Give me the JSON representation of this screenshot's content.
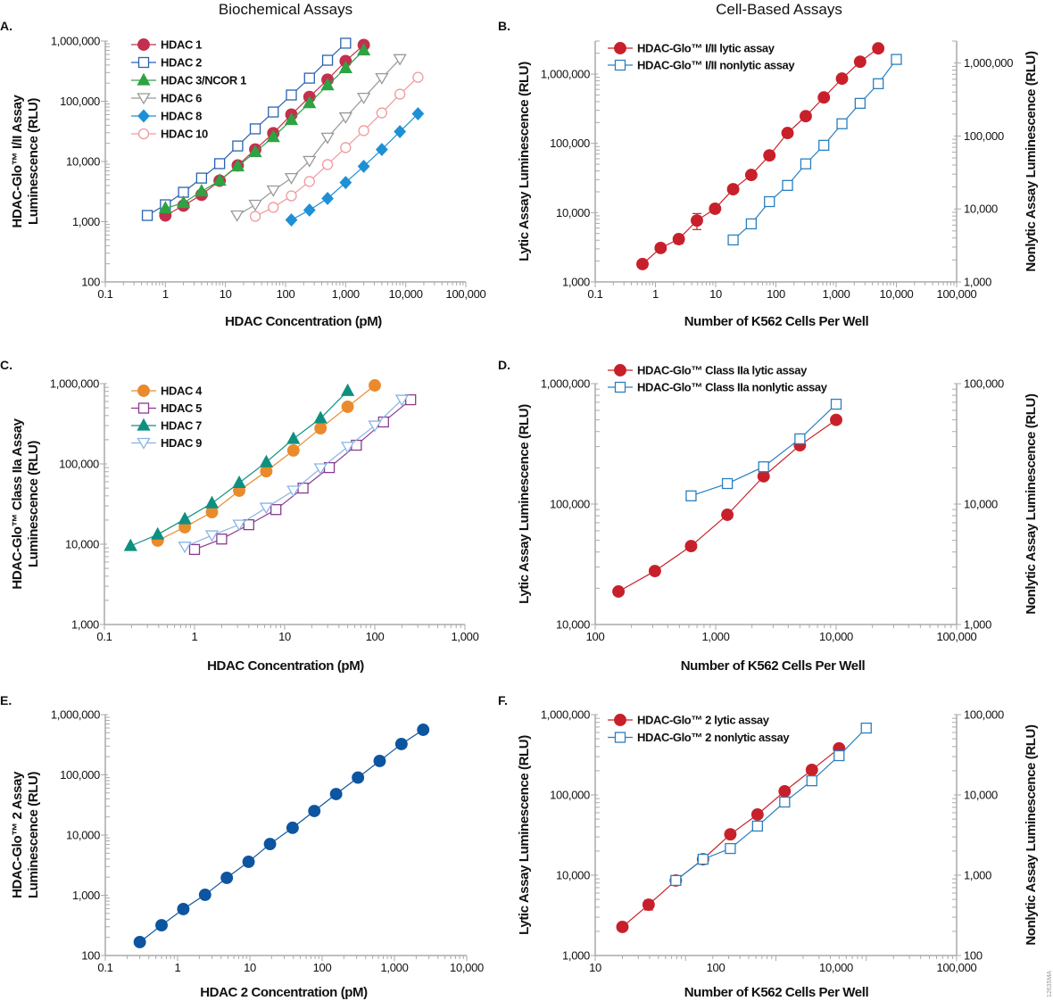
{
  "headings": {
    "biochemical": "Biochemical Assays",
    "cell_based": "Cell-Based Assays"
  },
  "figure_code": "12635MA",
  "chart_data": [
    {
      "panel": "A.",
      "type": "line",
      "scale": "log-log",
      "xlabel": "HDAC Concentration (pM)",
      "ylabel": [
        "HDAC-Glo™ I/II Assay",
        "Luminescence (RLU)"
      ],
      "xlim": [
        0.1,
        100000
      ],
      "ylim": [
        100,
        1000000
      ],
      "x_tick_labels": [
        "0.1",
        "1",
        "10",
        "100",
        "1,000",
        "10,000",
        "100,000"
      ],
      "y_ticks": [
        100,
        1000,
        10000,
        100000,
        1000000
      ],
      "y_tick_labels": [
        "100",
        "1,000",
        "10,000",
        "100,000",
        "1,000,000"
      ],
      "legend": "top-left",
      "grid": false,
      "series": [
        {
          "name": "HDAC 1",
          "color": "#c3304d",
          "marker": "circle-filled",
          "axis": "left",
          "x": [
            1,
            2,
            4,
            8,
            16,
            31.3,
            62.5,
            125,
            250,
            500,
            1000,
            2000
          ],
          "y": [
            1270,
            1850,
            2800,
            4800,
            8600,
            15800,
            29500,
            60000,
            118000,
            228000,
            465000,
            860000
          ]
        },
        {
          "name": "HDAC 2",
          "color": "#2a62b0",
          "marker": "square-open",
          "axis": "left",
          "x": [
            0.5,
            1,
            2,
            4,
            8,
            16,
            31.3,
            62.5,
            125,
            250,
            500,
            1000
          ],
          "y": [
            1270,
            1910,
            3080,
            5300,
            9200,
            18100,
            34800,
            66300,
            127000,
            242000,
            480000,
            920000
          ]
        },
        {
          "name": "HDAC 3/NCOR 1",
          "color": "#2ea343",
          "marker": "triangle-up-filled",
          "axis": "left",
          "x": [
            1,
            2,
            4,
            8,
            16,
            31.3,
            62.5,
            125,
            250,
            500,
            1000,
            2000
          ],
          "y": [
            1670,
            2050,
            3190,
            4800,
            8300,
            14300,
            25500,
            48800,
            93000,
            184000,
            355000,
            700000
          ]
        },
        {
          "name": "HDAC 6",
          "color": "#999999",
          "marker": "triangle-down-open",
          "axis": "left",
          "x": [
            15.6,
            31.3,
            62.5,
            125,
            250,
            500,
            1000,
            2000,
            4000,
            8000
          ],
          "y": [
            1270,
            1910,
            3300,
            5300,
            10200,
            24800,
            54000,
            114000,
            242000,
            500000
          ]
        },
        {
          "name": "HDAC 8",
          "color": "#1e90d6",
          "marker": "diamond-filled",
          "axis": "left",
          "x": [
            125,
            250,
            500,
            1000,
            2000,
            4000,
            8000,
            16000
          ],
          "y": [
            1070,
            1560,
            2430,
            4470,
            8300,
            15800,
            31300,
            62000
          ]
        },
        {
          "name": "HDAC 10",
          "color": "#f09a9c",
          "marker": "circle-open",
          "axis": "left",
          "x": [
            31.3,
            62.5,
            125,
            250,
            500,
            1000,
            2000,
            4000,
            8000,
            16000
          ],
          "y": [
            1230,
            1730,
            2690,
            4650,
            8900,
            17000,
            32500,
            64000,
            131000,
            250000
          ]
        }
      ]
    },
    {
      "panel": "B.",
      "type": "line",
      "scale": "log-log",
      "xlabel": "Number of K562 Cells Per Well",
      "ylabel": [
        "Lytic Assay Luminescence (RLU)"
      ],
      "ylabel_right": "Nonlytic Assay Luminescence (RLU)",
      "xlim": [
        0.1,
        100000
      ],
      "ylim": [
        1000,
        3000000
      ],
      "ylim_right": [
        1000,
        2000000
      ],
      "x_tick_labels": [
        "0.1",
        "1",
        "10",
        "100",
        "1,000",
        "10,000",
        "100,000"
      ],
      "y_ticks": [
        1000,
        10000,
        100000,
        1000000
      ],
      "y_tick_labels": [
        "1,000",
        "10,000",
        "100,000",
        "1,000,000"
      ],
      "y_ticks_right": [
        1000,
        10000,
        100000,
        1000000
      ],
      "y_tick_labels_right": [
        "1,000",
        "10,000",
        "100,000",
        "1,000,000"
      ],
      "legend": "top-left",
      "grid": false,
      "series": [
        {
          "name": "HDAC-Glo™ I/II lytic assay",
          "color": "#c8202a",
          "marker": "circle-filled",
          "axis": "left",
          "x": [
            0.61,
            1.22,
            2.44,
            4.88,
            9.77,
            19.5,
            39,
            78,
            156,
            313,
            625,
            1250,
            2500,
            5000
          ],
          "y": [
            1810,
            3090,
            4150,
            7700,
            11400,
            21800,
            35000,
            67000,
            141000,
            247000,
            460000,
            860000,
            1510000,
            2350000
          ],
          "yerr": [
            0,
            0,
            600,
            2000,
            1500,
            0,
            0,
            0,
            0,
            0,
            0,
            0,
            0,
            0
          ]
        },
        {
          "name": "HDAC-Glo™ I/II nonlytic assay",
          "color": "#2a7fc0",
          "marker": "square-open",
          "axis": "right",
          "x": [
            19.5,
            39,
            78,
            156,
            313,
            625,
            1250,
            2500,
            5000,
            10000
          ],
          "y": [
            3760,
            6250,
            12600,
            21000,
            41500,
            74500,
            147000,
            280000,
            520000,
            1120000
          ]
        }
      ]
    },
    {
      "panel": "C.",
      "type": "line",
      "scale": "log-log",
      "xlabel": "HDAC Concentration (pM)",
      "ylabel": [
        "HDAC-Glo™ Class IIa Assay",
        "Luminescence (RLU)"
      ],
      "xlim": [
        0.1,
        1000
      ],
      "ylim": [
        1000,
        1000000
      ],
      "x_tick_labels": [
        "0.1",
        "1",
        "10",
        "100",
        "1,000"
      ],
      "y_ticks": [
        1000,
        10000,
        100000,
        1000000
      ],
      "y_tick_labels": [
        "1,000",
        "10,000",
        "100,000",
        "1,000,000"
      ],
      "legend": "top-left",
      "grid": false,
      "series": [
        {
          "name": "HDAC 4",
          "color": "#ea8a2c",
          "marker": "circle-filled",
          "axis": "left",
          "x": [
            0.39,
            0.78,
            1.56,
            3.13,
            6.25,
            12.5,
            25,
            50,
            100
          ],
          "y": [
            11100,
            16300,
            25100,
            46400,
            81000,
            147000,
            278000,
            515000,
            950000
          ]
        },
        {
          "name": "HDAC 5",
          "color": "#8a3a8e",
          "marker": "square-open",
          "axis": "left",
          "x": [
            1,
            2,
            4,
            8,
            16,
            31.3,
            62.5,
            125,
            250
          ],
          "y": [
            8600,
            11600,
            17500,
            27000,
            50000,
            90000,
            171000,
            333000,
            630000
          ]
        },
        {
          "name": "HDAC 7",
          "color": "#0e9080",
          "marker": "triangle-up-filled",
          "axis": "left",
          "x": [
            0.195,
            0.39,
            0.78,
            1.56,
            3.13,
            6.25,
            12.5,
            25,
            50
          ],
          "y": [
            9500,
            13200,
            20500,
            32400,
            58000,
            105000,
            205000,
            370000,
            810000
          ]
        },
        {
          "name": "HDAC 9",
          "color": "#8ab4e6",
          "marker": "triangle-down-open",
          "axis": "left",
          "x": [
            0.78,
            1.56,
            3.13,
            6.25,
            12.5,
            25,
            50,
            100,
            200
          ],
          "y": [
            9300,
            12900,
            17500,
            28500,
            46400,
            88000,
            163000,
            300000,
            630000
          ]
        }
      ]
    },
    {
      "panel": "D.",
      "type": "line",
      "scale": "log-log",
      "xlabel": "Number of K562 Cells Per Well",
      "ylabel": [
        "Lytic Assay Luminescence (RLU)"
      ],
      "ylabel_right": "Nonlytic Assay Luminescence (RLU)",
      "xlim": [
        100,
        100000
      ],
      "ylim": [
        10000,
        1000000
      ],
      "ylim_right": [
        1000,
        100000
      ],
      "x_tick_labels": [
        "100",
        "1,000",
        "10,000",
        "100,000"
      ],
      "y_ticks": [
        10000,
        100000,
        1000000
      ],
      "y_tick_labels": [
        "10,000",
        "100,000",
        "1,000,000"
      ],
      "y_ticks_right": [
        1000,
        10000,
        100000
      ],
      "y_tick_labels_right": [
        "1,000",
        "10,000",
        "100,000"
      ],
      "legend": "top-left",
      "grid": false,
      "series": [
        {
          "name": "HDAC-Glo™ Class IIa lytic assay",
          "color": "#c8202a",
          "marker": "circle-filled",
          "axis": "left",
          "x": [
            156,
            313,
            625,
            1250,
            2500,
            5000,
            10000
          ],
          "y": [
            18800,
            27800,
            44800,
            81500,
            170000,
            308000,
            500000
          ]
        },
        {
          "name": "HDAC-Glo™ Class IIa nonlytic assay",
          "color": "#2a7fc0",
          "marker": "square-open",
          "axis": "right",
          "x": [
            625,
            1250,
            2500,
            5000,
            10000
          ],
          "y": [
            11700,
            14800,
            20400,
            34800,
            67500
          ]
        }
      ]
    },
    {
      "panel": "E.",
      "type": "line",
      "scale": "log-log",
      "xlabel": "HDAC 2 Concentration (pM)",
      "ylabel": [
        "HDAC-Glo™ 2 Assay",
        "Luminescence (RLU)"
      ],
      "xlim": [
        0.1,
        10000
      ],
      "ylim": [
        100,
        1000000
      ],
      "x_tick_labels": [
        "0.1",
        "1",
        "10",
        "100",
        "1,000",
        "10,000"
      ],
      "y_ticks": [
        100,
        1000,
        10000,
        100000,
        1000000
      ],
      "y_tick_labels": [
        "100",
        "1,000",
        "10,000",
        "100,000",
        "1,000,000"
      ],
      "legend": "none",
      "grid": false,
      "series": [
        {
          "color": "#0d55a0",
          "marker": "circle-filled",
          "axis": "left",
          "x": [
            0.3,
            0.6,
            1.2,
            2.4,
            4.8,
            9.6,
            19,
            39,
            78,
            156,
            313,
            625,
            1250,
            2500
          ],
          "y": [
            167,
            318,
            590,
            1020,
            1950,
            3600,
            7100,
            13200,
            25100,
            48000,
            90000,
            170000,
            325000,
            560000
          ]
        }
      ]
    },
    {
      "panel": "F.",
      "type": "line",
      "scale": "log-log",
      "xlabel": "Number of K562 Cells Per Well",
      "ylabel": [
        "Lytic Assay Luminescence (RLU)"
      ],
      "ylabel_right": "Nonlytic Assay Luminescence (RLU)",
      "xlim": [
        10,
        100000
      ],
      "ylim": [
        1000,
        1000000
      ],
      "ylim_right": [
        100,
        100000
      ],
      "x_tick_labels": [
        "10",
        "100",
        "10,000",
        "100,000"
      ],
      "y_ticks": [
        1000,
        10000,
        100000,
        1000000
      ],
      "y_tick_labels": [
        "1,000",
        "10,000",
        "100,000",
        "1,000,000"
      ],
      "y_ticks_right": [
        100,
        1000,
        10000,
        100000
      ],
      "y_tick_labels_right": [
        "100",
        "1,000",
        "10,000",
        "100,000"
      ],
      "legend": "top-left",
      "grid": false,
      "series": [
        {
          "name": "HDAC-Glo™ 2 lytic assay",
          "color": "#c8202a",
          "marker": "circle-filled",
          "axis": "left",
          "x": [
            20,
            39,
            78,
            156,
            313,
            625,
            1250,
            2500,
            5000
          ],
          "y": [
            2270,
            4290,
            8590,
            15800,
            32300,
            57000,
            111000,
            205000,
            380000
          ],
          "yerr": [
            0,
            600,
            0,
            0,
            0,
            0,
            0,
            0,
            0
          ]
        },
        {
          "name": "HDAC-Glo™ 2 nonlytic assay",
          "color": "#2a7fc0",
          "marker": "square-open",
          "axis": "right",
          "x": [
            78,
            156,
            313,
            625,
            1250,
            2500,
            5000,
            10000
          ],
          "y": [
            860,
            1580,
            2150,
            4090,
            8150,
            15000,
            30800,
            68000
          ]
        }
      ]
    }
  ]
}
